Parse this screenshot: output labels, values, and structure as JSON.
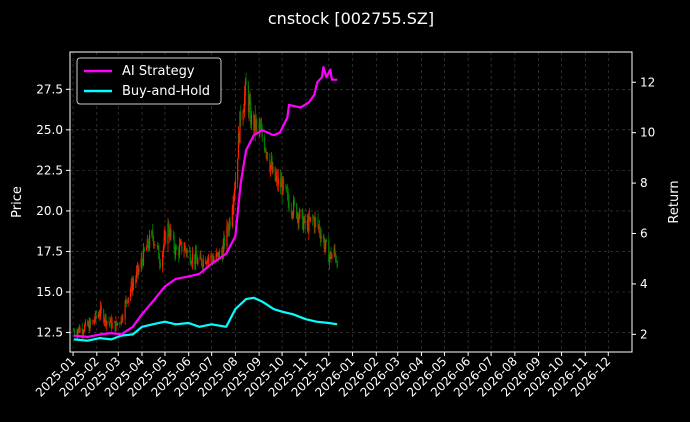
{
  "chart_data": {
    "type": "line",
    "title": "cnstock [002755.SZ]",
    "ylabel": "Price",
    "y2label": "Return",
    "ylim": [
      11.3,
      29.8
    ],
    "y2lim": [
      1.3,
      13.2
    ],
    "yticks": [
      12.5,
      15.0,
      17.5,
      20.0,
      22.5,
      25.0,
      27.5
    ],
    "y2ticks": [
      2,
      4,
      6,
      8,
      10,
      12
    ],
    "xlim": [
      "2024-12-28",
      "2027-01-01"
    ],
    "xticks": [
      "2025-01",
      "2025-02",
      "2025-03",
      "2025-04",
      "2025-05",
      "2025-06",
      "2025-07",
      "2025-08",
      "2025-09",
      "2025-10",
      "2025-11",
      "2025-12",
      "2026-01",
      "2026-02",
      "2026-03",
      "2026-04",
      "2026-05",
      "2026-06",
      "2026-07",
      "2026-08",
      "2026-09",
      "2026-10",
      "2026-11",
      "2026-12"
    ],
    "grid": true,
    "legend": "top-left",
    "series": [
      {
        "name": "AI Strategy",
        "axis": "right",
        "color": "#ff00ff",
        "points": [
          [
            "2025-01-02",
            1.95
          ],
          [
            "2025-01-20",
            1.9
          ],
          [
            "2025-02-05",
            2.0
          ],
          [
            "2025-02-20",
            2.05
          ],
          [
            "2025-03-05",
            2.0
          ],
          [
            "2025-03-20",
            2.3
          ],
          [
            "2025-04-01",
            2.8
          ],
          [
            "2025-04-15",
            3.3
          ],
          [
            "2025-05-01",
            3.9
          ],
          [
            "2025-05-15",
            4.2
          ],
          [
            "2025-06-01",
            4.3
          ],
          [
            "2025-06-15",
            4.4
          ],
          [
            "2025-07-01",
            4.8
          ],
          [
            "2025-07-20",
            5.2
          ],
          [
            "2025-08-01",
            5.9
          ],
          [
            "2025-08-08",
            8.0
          ],
          [
            "2025-08-15",
            9.3
          ],
          [
            "2025-08-25",
            9.9
          ],
          [
            "2025-09-05",
            10.1
          ],
          [
            "2025-09-20",
            9.9
          ],
          [
            "2025-09-28",
            10.0
          ],
          [
            "2025-10-08",
            10.6
          ],
          [
            "2025-10-10",
            11.1
          ],
          [
            "2025-10-25",
            11.0
          ],
          [
            "2025-11-05",
            11.2
          ],
          [
            "2025-11-12",
            11.5
          ],
          [
            "2025-11-16",
            12.0
          ],
          [
            "2025-11-22",
            12.2
          ],
          [
            "2025-11-24",
            12.6
          ],
          [
            "2025-11-28",
            12.2
          ],
          [
            "2025-12-03",
            12.5
          ],
          [
            "2025-12-05",
            12.1
          ],
          [
            "2025-12-12",
            12.1
          ]
        ]
      },
      {
        "name": "Buy-and-Hold",
        "axis": "right",
        "color": "#00ffff",
        "points": [
          [
            "2025-01-02",
            1.8
          ],
          [
            "2025-01-20",
            1.75
          ],
          [
            "2025-02-05",
            1.85
          ],
          [
            "2025-02-20",
            1.8
          ],
          [
            "2025-03-05",
            1.95
          ],
          [
            "2025-03-20",
            2.0
          ],
          [
            "2025-04-01",
            2.3
          ],
          [
            "2025-04-15",
            2.4
          ],
          [
            "2025-05-01",
            2.5
          ],
          [
            "2025-05-15",
            2.4
          ],
          [
            "2025-06-01",
            2.45
          ],
          [
            "2025-06-15",
            2.3
          ],
          [
            "2025-07-01",
            2.4
          ],
          [
            "2025-07-20",
            2.3
          ],
          [
            "2025-08-01",
            3.0
          ],
          [
            "2025-08-15",
            3.4
          ],
          [
            "2025-08-25",
            3.45
          ],
          [
            "2025-09-05",
            3.3
          ],
          [
            "2025-09-20",
            3.0
          ],
          [
            "2025-10-01",
            2.9
          ],
          [
            "2025-10-15",
            2.8
          ],
          [
            "2025-11-01",
            2.6
          ],
          [
            "2025-11-15",
            2.5
          ],
          [
            "2025-12-01",
            2.45
          ],
          [
            "2025-12-12",
            2.4
          ]
        ]
      },
      {
        "name": "Price",
        "type": "candlestick",
        "axis": "left",
        "up_color": "#ff2000",
        "down_color": "#008000",
        "points": [
          [
            "2025-01-02",
            12.6
          ],
          [
            "2025-01-15",
            12.8
          ],
          [
            "2025-01-25",
            13.0
          ],
          [
            "2025-02-05",
            13.8
          ],
          [
            "2025-02-15",
            13.2
          ],
          [
            "2025-02-25",
            12.9
          ],
          [
            "2025-03-05",
            13.4
          ],
          [
            "2025-03-15",
            15.0
          ],
          [
            "2025-03-25",
            16.0
          ],
          [
            "2025-04-05",
            17.5
          ],
          [
            "2025-04-15",
            18.5
          ],
          [
            "2025-04-25",
            17.0
          ],
          [
            "2025-05-05",
            19.0
          ],
          [
            "2025-05-15",
            17.5
          ],
          [
            "2025-05-25",
            17.8
          ],
          [
            "2025-06-05",
            17.2
          ],
          [
            "2025-06-15",
            16.8
          ],
          [
            "2025-06-25",
            17.2
          ],
          [
            "2025-07-05",
            17.0
          ],
          [
            "2025-07-15",
            17.5
          ],
          [
            "2025-07-25",
            19.5
          ],
          [
            "2025-08-01",
            22.0
          ],
          [
            "2025-08-08",
            26.0
          ],
          [
            "2025-08-15",
            27.5
          ],
          [
            "2025-08-22",
            25.5
          ],
          [
            "2025-09-01",
            25.0
          ],
          [
            "2025-09-10",
            24.0
          ],
          [
            "2025-09-20",
            22.0
          ],
          [
            "2025-10-01",
            21.5
          ],
          [
            "2025-10-10",
            20.5
          ],
          [
            "2025-10-20",
            20.0
          ],
          [
            "2025-11-01",
            19.0
          ],
          [
            "2025-11-10",
            19.5
          ],
          [
            "2025-11-18",
            19.0
          ],
          [
            "2025-11-25",
            18.0
          ],
          [
            "2025-12-02",
            17.2
          ],
          [
            "2025-12-08",
            17.4
          ],
          [
            "2025-12-12",
            17.0
          ]
        ]
      }
    ]
  }
}
